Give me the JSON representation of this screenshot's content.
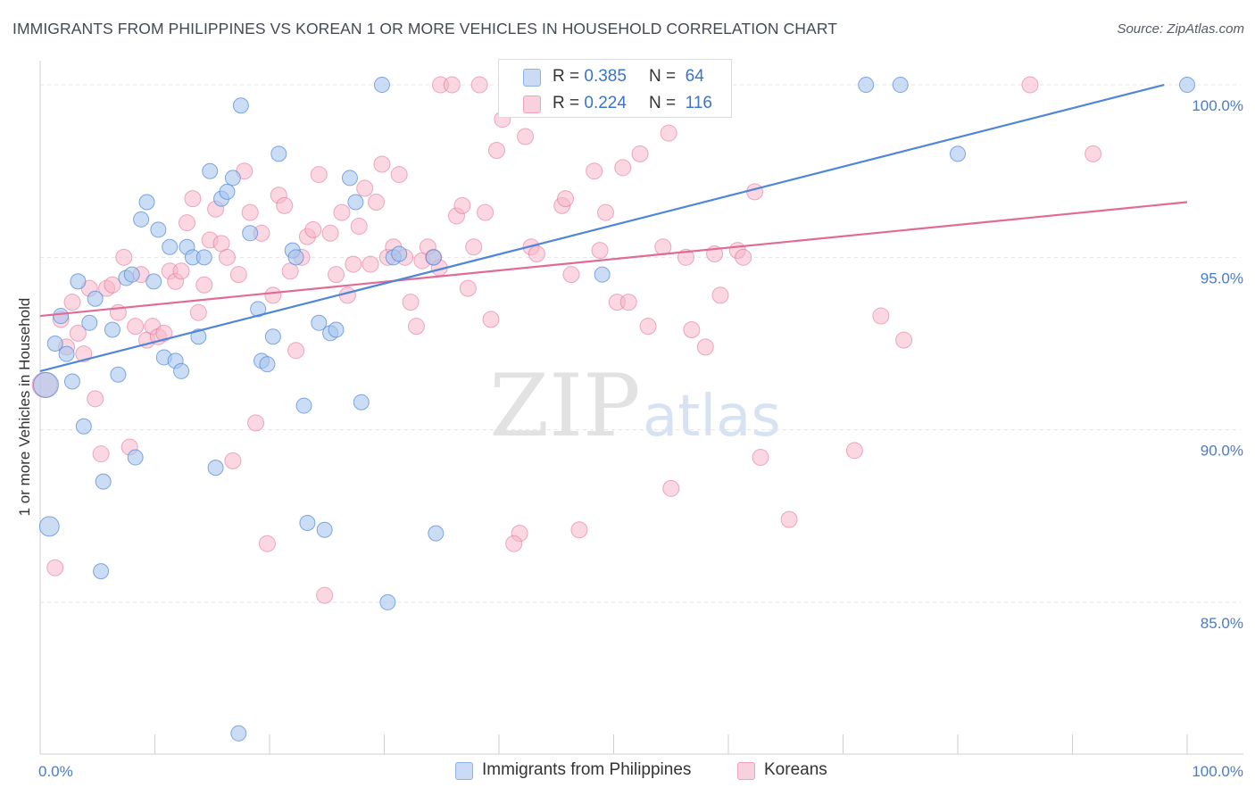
{
  "header": {
    "title": "IMMIGRANTS FROM PHILIPPINES VS KOREAN 1 OR MORE VEHICLES IN HOUSEHOLD CORRELATION CHART",
    "source": "Source: ZipAtlas.com"
  },
  "watermark": {
    "zip": "ZIP",
    "atlas": "atlas"
  },
  "legend_top": {
    "rows": [
      {
        "r_label": "R =",
        "r_value": "0.385",
        "n_label": "N =",
        "n_value": "64",
        "color": "#a9c6ee"
      },
      {
        "r_label": "R =",
        "r_value": "0.224",
        "n_label": "N =",
        "n_value": "116",
        "color": "#f5b7c9"
      }
    ]
  },
  "legend_bottom": {
    "items": [
      {
        "label": "Immigrants from Philippines",
        "color": "#a9c6ee"
      },
      {
        "label": "Koreans",
        "color": "#f5b7c9"
      }
    ]
  },
  "chart_data": {
    "type": "scatter",
    "title": "IMMIGRANTS FROM PHILIPPINES VS KOREAN 1 OR MORE VEHICLES IN HOUSEHOLD CORRELATION CHART",
    "xlabel": "",
    "ylabel": "1 or more Vehicles in Household",
    "xlim": [
      0,
      100
    ],
    "ylim": [
      80.6,
      100.7
    ],
    "x_tick_labels": [
      "0.0%",
      "100.0%"
    ],
    "y_ticks": [
      85,
      90,
      95,
      100
    ],
    "y_tick_labels": [
      "85.0%",
      "90.0%",
      "95.0%",
      "100.0%"
    ],
    "grid": true,
    "legend_placement": "top-center",
    "colors": {
      "philippines": "#4f86d9",
      "philippines_fill": "#a9c6ee",
      "koreans": "#e06b95",
      "koreans_fill": "#f5b7c9"
    },
    "series": [
      {
        "name": "Immigrants from Philippines",
        "trend": {
          "x": [
            0,
            98
          ],
          "y": [
            91.7,
            100.0
          ]
        },
        "points": [
          [
            0.5,
            91.3
          ],
          [
            0.8,
            87.2
          ],
          [
            1.3,
            92.5
          ],
          [
            1.8,
            93.3
          ],
          [
            2.3,
            92.2
          ],
          [
            2.8,
            91.4
          ],
          [
            3.3,
            94.3
          ],
          [
            3.8,
            90.1
          ],
          [
            4.3,
            93.1
          ],
          [
            4.8,
            93.8
          ],
          [
            5.5,
            88.5
          ],
          [
            5.3,
            85.9
          ],
          [
            6.3,
            92.9
          ],
          [
            6.8,
            91.6
          ],
          [
            7.5,
            94.4
          ],
          [
            8.0,
            94.5
          ],
          [
            8.3,
            89.2
          ],
          [
            8.8,
            96.1
          ],
          [
            9.3,
            96.6
          ],
          [
            9.9,
            94.3
          ],
          [
            10.3,
            95.8
          ],
          [
            10.8,
            92.1
          ],
          [
            11.3,
            95.3
          ],
          [
            11.8,
            92.0
          ],
          [
            12.3,
            91.7
          ],
          [
            12.8,
            95.3
          ],
          [
            13.3,
            95.0
          ],
          [
            13.8,
            92.7
          ],
          [
            14.3,
            95.0
          ],
          [
            14.8,
            97.5
          ],
          [
            15.3,
            88.9
          ],
          [
            15.8,
            96.7
          ],
          [
            16.3,
            96.9
          ],
          [
            16.8,
            97.3
          ],
          [
            17.3,
            81.2
          ],
          [
            17.5,
            99.4
          ],
          [
            18.3,
            95.7
          ],
          [
            19.0,
            93.5
          ],
          [
            19.3,
            92.0
          ],
          [
            19.8,
            91.9
          ],
          [
            20.3,
            92.7
          ],
          [
            20.8,
            98.0
          ],
          [
            22.0,
            95.2
          ],
          [
            22.3,
            95.0
          ],
          [
            23.0,
            90.7
          ],
          [
            23.3,
            87.3
          ],
          [
            24.3,
            93.1
          ],
          [
            24.8,
            87.1
          ],
          [
            25.3,
            92.8
          ],
          [
            25.8,
            92.9
          ],
          [
            27.0,
            97.3
          ],
          [
            27.5,
            96.6
          ],
          [
            28.0,
            90.8
          ],
          [
            29.8,
            100.0
          ],
          [
            30.3,
            85.0
          ],
          [
            30.8,
            95.0
          ],
          [
            31.3,
            95.1
          ],
          [
            34.3,
            95.0
          ],
          [
            34.5,
            87.0
          ],
          [
            49.0,
            94.5
          ],
          [
            72.0,
            100.0
          ],
          [
            75.0,
            100.0
          ],
          [
            80.0,
            98.0
          ],
          [
            100.0,
            100.0
          ]
        ]
      },
      {
        "name": "Koreans",
        "trend": {
          "x": [
            0,
            100
          ],
          "y": [
            93.3,
            96.6
          ]
        },
        "points": [
          [
            0.4,
            91.3
          ],
          [
            1.3,
            86.0
          ],
          [
            1.8,
            93.2
          ],
          [
            2.3,
            92.4
          ],
          [
            2.8,
            93.7
          ],
          [
            3.3,
            92.8
          ],
          [
            3.8,
            92.2
          ],
          [
            4.3,
            94.1
          ],
          [
            4.8,
            90.9
          ],
          [
            5.3,
            89.3
          ],
          [
            5.8,
            94.1
          ],
          [
            6.3,
            94.2
          ],
          [
            6.8,
            93.4
          ],
          [
            7.3,
            95.0
          ],
          [
            7.8,
            89.5
          ],
          [
            8.3,
            93.0
          ],
          [
            8.8,
            94.5
          ],
          [
            9.3,
            92.6
          ],
          [
            9.8,
            93.0
          ],
          [
            10.3,
            92.7
          ],
          [
            10.8,
            92.8
          ],
          [
            11.3,
            94.6
          ],
          [
            11.8,
            94.3
          ],
          [
            12.3,
            94.6
          ],
          [
            12.8,
            96.0
          ],
          [
            13.3,
            96.7
          ],
          [
            13.8,
            93.4
          ],
          [
            14.3,
            94.2
          ],
          [
            14.8,
            95.5
          ],
          [
            15.3,
            96.4
          ],
          [
            15.8,
            95.4
          ],
          [
            16.3,
            95.0
          ],
          [
            16.8,
            89.1
          ],
          [
            17.3,
            94.5
          ],
          [
            17.8,
            97.5
          ],
          [
            18.3,
            96.3
          ],
          [
            18.8,
            90.2
          ],
          [
            19.3,
            95.7
          ],
          [
            19.8,
            86.7
          ],
          [
            20.3,
            93.9
          ],
          [
            20.8,
            96.8
          ],
          [
            21.3,
            96.5
          ],
          [
            21.8,
            94.6
          ],
          [
            22.3,
            92.3
          ],
          [
            22.8,
            95.0
          ],
          [
            23.3,
            95.6
          ],
          [
            23.8,
            95.8
          ],
          [
            24.3,
            97.4
          ],
          [
            24.8,
            85.2
          ],
          [
            25.3,
            95.7
          ],
          [
            25.8,
            94.5
          ],
          [
            26.3,
            96.3
          ],
          [
            26.8,
            93.9
          ],
          [
            27.3,
            94.8
          ],
          [
            27.8,
            95.9
          ],
          [
            28.3,
            97.0
          ],
          [
            28.8,
            94.8
          ],
          [
            29.3,
            96.6
          ],
          [
            29.8,
            97.7
          ],
          [
            30.3,
            95.0
          ],
          [
            30.8,
            95.3
          ],
          [
            31.3,
            97.4
          ],
          [
            31.8,
            95.0
          ],
          [
            32.3,
            93.7
          ],
          [
            32.8,
            93.0
          ],
          [
            33.3,
            94.9
          ],
          [
            33.8,
            95.3
          ],
          [
            34.3,
            95.0
          ],
          [
            34.8,
            94.7
          ],
          [
            34.9,
            100.0
          ],
          [
            35.9,
            100.0
          ],
          [
            36.3,
            96.2
          ],
          [
            36.8,
            96.5
          ],
          [
            37.3,
            94.1
          ],
          [
            37.8,
            95.3
          ],
          [
            38.3,
            100.0
          ],
          [
            38.8,
            96.3
          ],
          [
            39.3,
            93.2
          ],
          [
            39.8,
            98.1
          ],
          [
            40.3,
            99.0
          ],
          [
            40.8,
            100.0
          ],
          [
            41.8,
            87.0
          ],
          [
            41.3,
            86.7
          ],
          [
            42.3,
            98.5
          ],
          [
            42.8,
            95.3
          ],
          [
            43.3,
            95.1
          ],
          [
            45.5,
            96.5
          ],
          [
            45.8,
            96.7
          ],
          [
            46.3,
            94.5
          ],
          [
            47.0,
            87.1
          ],
          [
            48.3,
            97.5
          ],
          [
            48.8,
            95.2
          ],
          [
            49.3,
            96.3
          ],
          [
            50.3,
            93.7
          ],
          [
            50.8,
            97.6
          ],
          [
            51.3,
            93.7
          ],
          [
            52.3,
            98.0
          ],
          [
            53.0,
            93.0
          ],
          [
            54.3,
            95.3
          ],
          [
            54.8,
            98.6
          ],
          [
            55.0,
            88.3
          ],
          [
            56.3,
            95.0
          ],
          [
            56.8,
            92.9
          ],
          [
            58.0,
            92.4
          ],
          [
            58.8,
            95.1
          ],
          [
            59.3,
            93.9
          ],
          [
            60.8,
            95.2
          ],
          [
            61.3,
            95.0
          ],
          [
            62.3,
            96.9
          ],
          [
            62.8,
            89.2
          ],
          [
            65.3,
            87.4
          ],
          [
            71.0,
            89.4
          ],
          [
            73.3,
            93.3
          ],
          [
            75.3,
            92.6
          ],
          [
            86.3,
            100.0
          ],
          [
            91.8,
            98.0
          ]
        ]
      }
    ]
  }
}
